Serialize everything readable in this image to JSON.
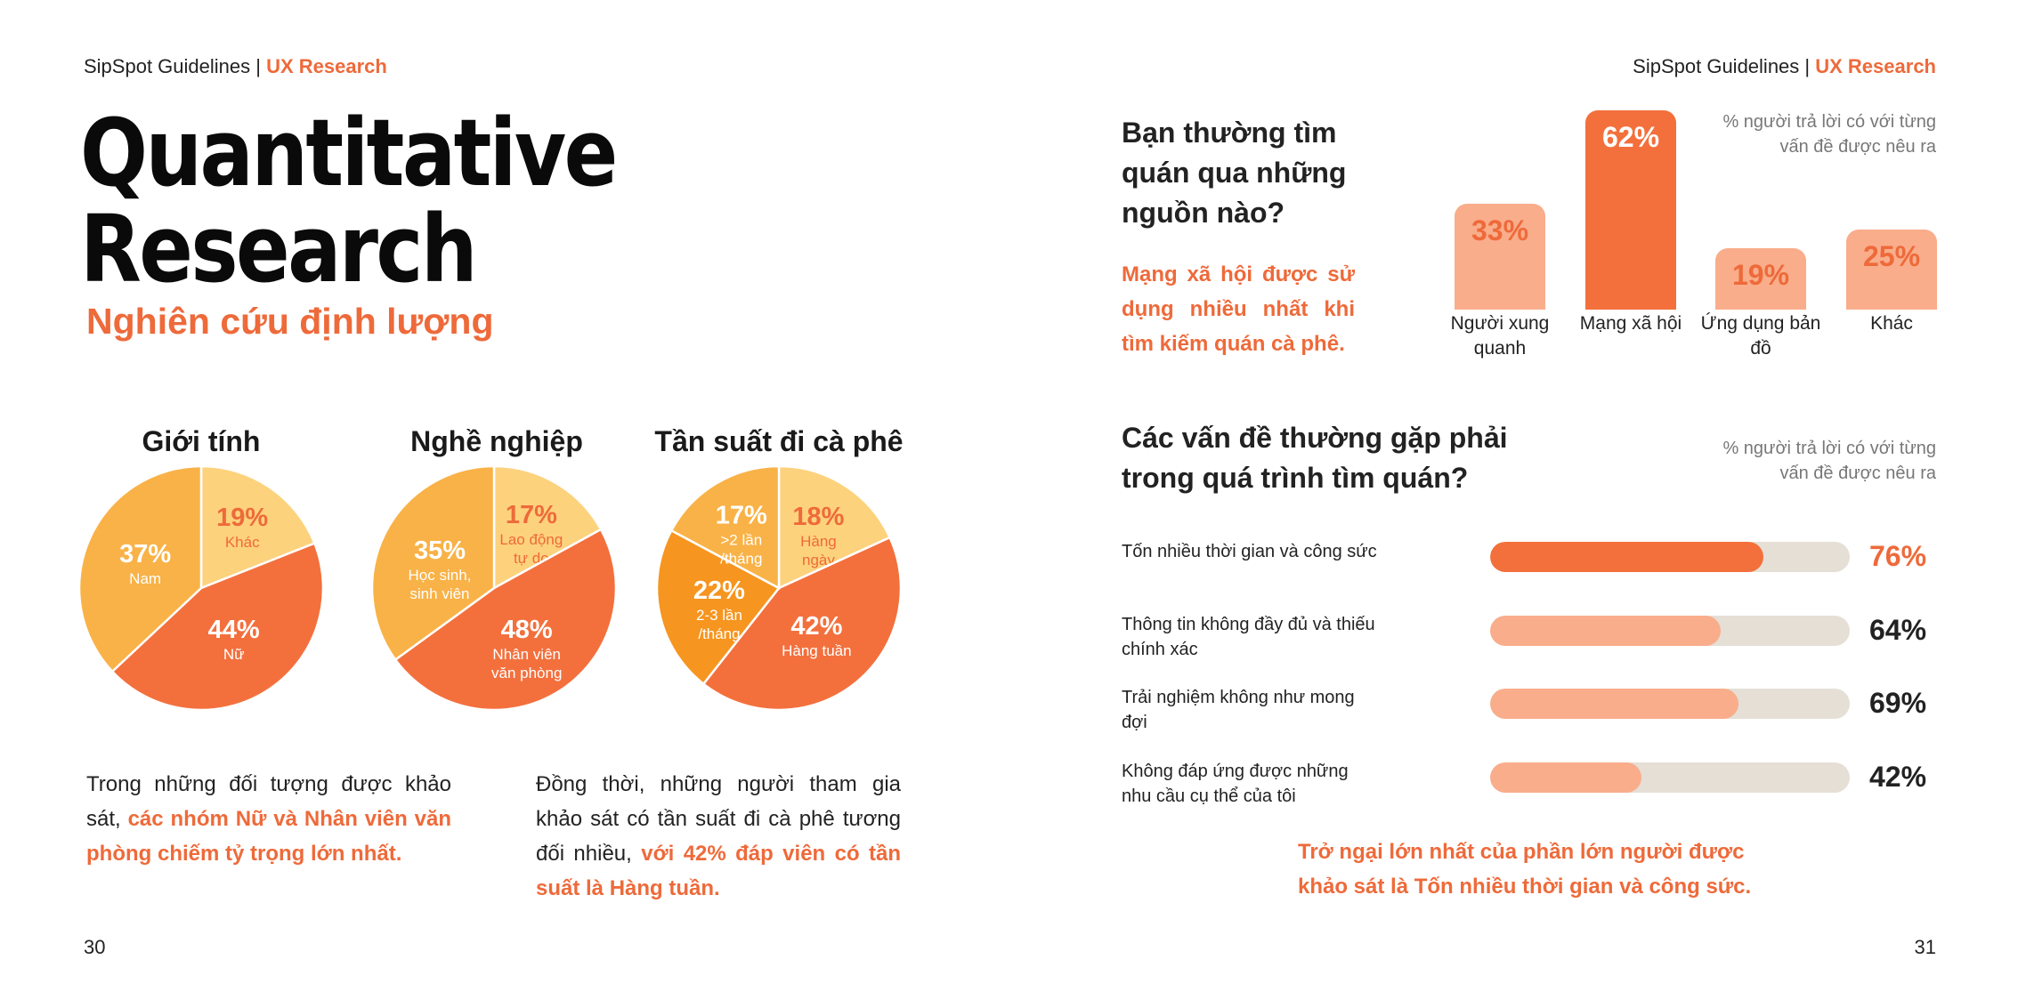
{
  "colors": {
    "accent": "#ee6a3a",
    "orange_dark": "#f3703d",
    "orange_mid": "#f9b247",
    "orange_light": "#fdd27d",
    "orange_deep": "#f6951f",
    "peach": "#f9ad8b",
    "track": "#e5dfd6"
  },
  "left_page": {
    "header": {
      "brand": "SipSpot Guidelines |",
      "section": "UX Research"
    },
    "title_line1": "Quantitative",
    "title_line2": "Research",
    "subtitle": "Nghiên cứu định lượng",
    "pies": [
      {
        "title": "Giới tính",
        "slices": [
          {
            "pct": "19%",
            "label": "Khác",
            "value": 19,
            "color": "#fdd27d",
            "text_color": "#ee6a3a"
          },
          {
            "pct": "44%",
            "label": "Nữ",
            "value": 44,
            "color": "#f3703d",
            "text_color": "#ffffff"
          },
          {
            "pct": "37%",
            "label": "Nam",
            "value": 37,
            "color": "#f9b247",
            "text_color": "#ffffff"
          }
        ]
      },
      {
        "title": "Nghề nghiệp",
        "slices": [
          {
            "pct": "17%",
            "label": "Lao động\ntự do",
            "value": 17,
            "color": "#fdd27d",
            "text_color": "#ee6a3a"
          },
          {
            "pct": "48%",
            "label": "Nhân viên\nvăn phòng",
            "value": 48,
            "color": "#f3703d",
            "text_color": "#ffffff"
          },
          {
            "pct": "35%",
            "label": "Học sinh,\nsinh viên",
            "value": 35,
            "color": "#f9b247",
            "text_color": "#ffffff"
          }
        ]
      },
      {
        "title": "Tần suất đi cà phê",
        "slices": [
          {
            "pct": "18%",
            "label": "Hàng\nngày",
            "value": 18,
            "color": "#fdd27d",
            "text_color": "#ee6a3a"
          },
          {
            "pct": "42%",
            "label": "Hàng tuần",
            "value": 42,
            "color": "#f3703d",
            "text_color": "#ffffff"
          },
          {
            "pct": "22%",
            "label": "2-3 lần\n/tháng",
            "value": 22,
            "color": "#f6951f",
            "text_color": "#ffffff"
          },
          {
            "pct": "17%",
            "label": ">2 lần\n/tháng",
            "value": 17,
            "color": "#f9b247",
            "text_color": "#ffffff"
          }
        ]
      }
    ],
    "para1": {
      "plain": "Trong những đối tượng được khảo sát, ",
      "highlight": "các nhóm Nữ và Nhân viên văn phòng chiếm tỷ trọng lớn nhất."
    },
    "para2": {
      "plain": "Đồng thời, những người tham gia khảo sát có tần suất đi cà phê tương đối nhiều, ",
      "highlight": "với 42% đáp viên có tần suất là Hàng tuần."
    },
    "page_number": "30"
  },
  "right_page": {
    "header": {
      "brand": "SipSpot Guidelines |",
      "section": "UX Research"
    },
    "question1": "Bạn thường tìm quán qua những nguồn nào?",
    "question1_note": "Mạng xã hội được sử dụng nhiều nhất khi tìm kiếm quán cà phê.",
    "side_note1_line1": "% người trả lời có với từng",
    "side_note1_line2": "vấn đề được nêu ra",
    "chart_data": {
      "type": "bar",
      "categories": [
        "Người xung quanh",
        "Mạng xã hội",
        "Ứng dụng bản đồ",
        "Khác"
      ],
      "values": [
        33,
        62,
        19,
        25
      ],
      "value_labels": [
        "33%",
        "62%",
        "19%",
        "25%"
      ],
      "ylabel": "% người trả lời có với từng vấn đề được nêu ra",
      "ylim": [
        0,
        62
      ],
      "colors": [
        "#f9ad8b",
        "#f3703d",
        "#f9ad8b",
        "#f9ad8b"
      ],
      "value_colors": [
        "#ee6a3a",
        "#ffffff",
        "#ee6a3a",
        "#ee6a3a"
      ]
    },
    "question2": "Các vấn đề thường gặp phải trong quá trình tìm quán?",
    "side_note2_line1": "% người trả lời có với từng",
    "side_note2_line2": "vấn đề được nêu ra",
    "problems": [
      {
        "label": "Tốn nhiều thời gian và công sức",
        "pct": "76%",
        "value": 0.76,
        "color": "#f3703d",
        "value_color": "#ee6a3a"
      },
      {
        "label": "Thông tin không đầy đủ và thiếu chính xác",
        "pct": "64%",
        "value": 0.64,
        "color": "#f9ad8b",
        "value_color": "#222222"
      },
      {
        "label": "Trải nghiệm không như mong đợi",
        "pct": "69%",
        "value": 0.69,
        "color": "#f9ad8b",
        "value_color": "#222222"
      },
      {
        "label": "Không đáp ứng được những nhu cầu cụ thể của tôi",
        "pct": "42%",
        "value": 0.42,
        "color": "#f9ad8b",
        "value_color": "#222222"
      }
    ],
    "conclusion": "Trở ngại lớn nhất của phần lớn người được khảo sát là Tốn nhiều thời gian và công sức.",
    "page_number": "31"
  }
}
